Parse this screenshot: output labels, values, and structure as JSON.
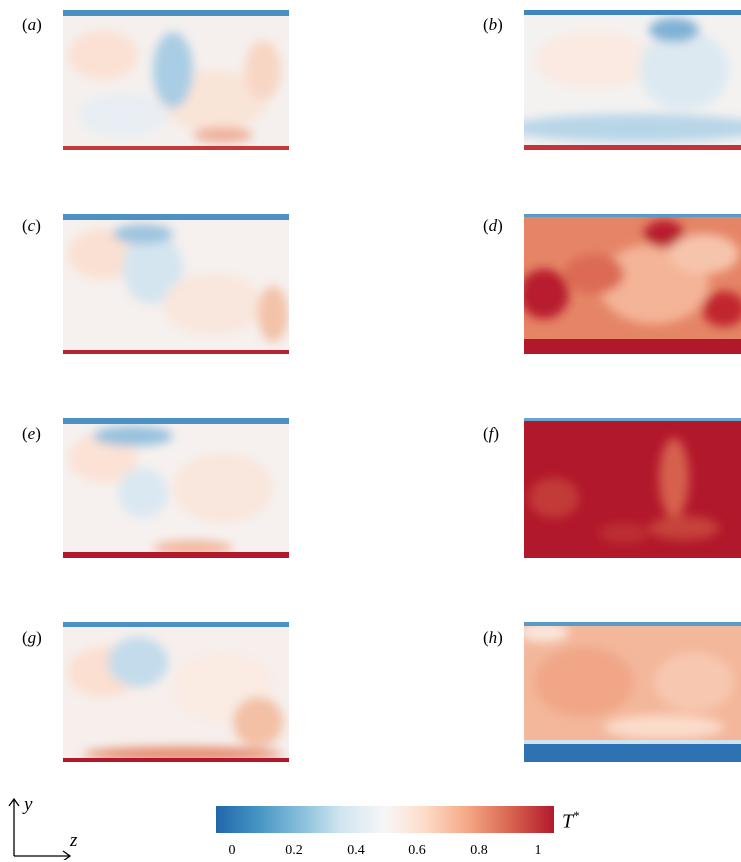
{
  "panels": [
    {
      "label": "a",
      "theme": "neutral"
    },
    {
      "label": "b",
      "theme": "cool"
    },
    {
      "label": "c",
      "theme": "neutral"
    },
    {
      "label": "d",
      "theme": "hot"
    },
    {
      "label": "e",
      "theme": "neutral"
    },
    {
      "label": "f",
      "theme": "hottest"
    },
    {
      "label": "g",
      "theme": "neutral"
    },
    {
      "label": "h",
      "theme": "warm"
    }
  ],
  "colorbar": {
    "label": "T",
    "label_sup": "*",
    "ticks": [
      "0",
      "0.2",
      "0.4",
      "0.6",
      "0.8",
      "1"
    ],
    "colors": [
      "#2166ac",
      "#92c5de",
      "#f7f7f7",
      "#f4a582",
      "#b2182b"
    ]
  },
  "axes": {
    "y": "y",
    "z": "z"
  }
}
